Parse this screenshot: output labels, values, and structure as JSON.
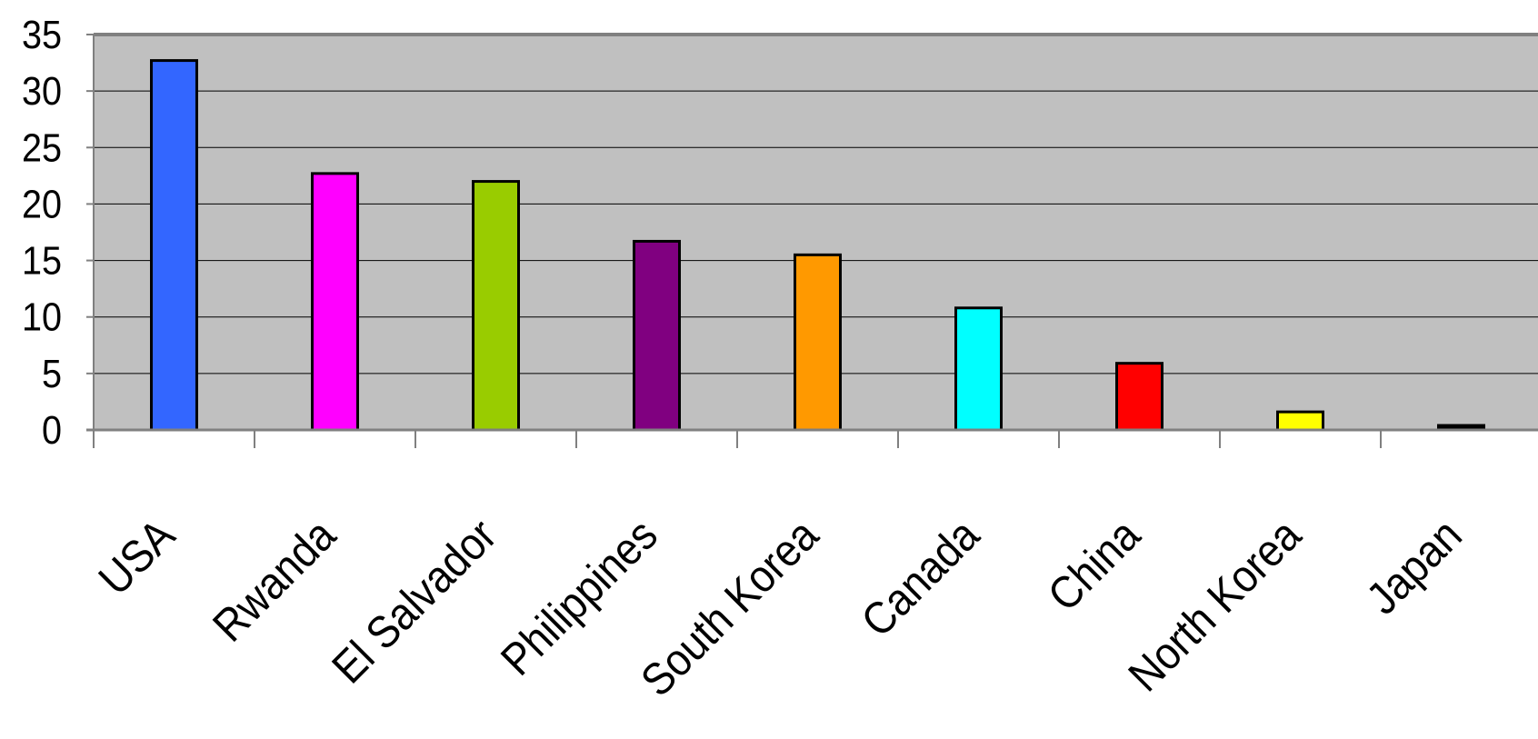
{
  "chart_data": {
    "type": "bar",
    "categories": [
      "USA",
      "Rwanda",
      "El Salvador",
      "Philippines",
      "South Korea",
      "Canada",
      "China",
      "North Korea",
      "Japan"
    ],
    "values": [
      32.7,
      22.7,
      22.0,
      16.7,
      15.5,
      10.8,
      5.9,
      1.6,
      0.4
    ],
    "colors": [
      "#3366ff",
      "#ff00ff",
      "#99cc00",
      "#800080",
      "#ff9900",
      "#00ffff",
      "#ff0000",
      "#ffff00",
      "#000000"
    ],
    "ylim": [
      0,
      35
    ],
    "yticks": [
      0,
      5,
      10,
      15,
      20,
      25,
      30,
      35
    ],
    "grid": true,
    "plot_background": "#c0c0c0",
    "gridline_color": "#000000",
    "bar_outline": "#000000",
    "legend": "none",
    "title": "",
    "xlabel": "",
    "ylabel": ""
  }
}
